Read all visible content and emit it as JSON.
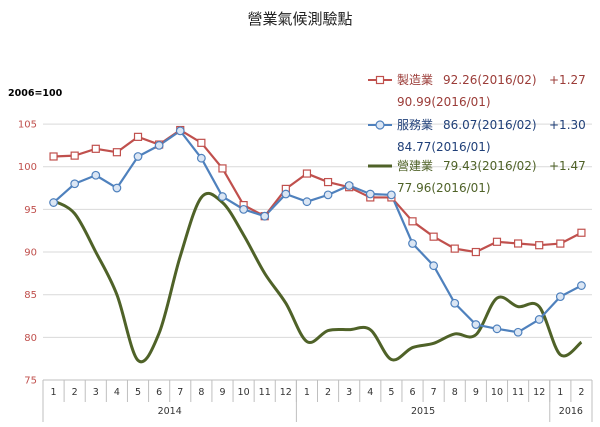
{
  "chart_data": {
    "type": "line",
    "title": "營業氣候測驗點",
    "base_note": "2006=100",
    "ylim": [
      75,
      107
    ],
    "yticks": [
      75,
      80,
      85,
      90,
      95,
      100,
      105
    ],
    "x_months": [
      "1",
      "2",
      "3",
      "4",
      "5",
      "6",
      "7",
      "8",
      "9",
      "10",
      "11",
      "12",
      "1",
      "2",
      "3",
      "4",
      "5",
      "6",
      "7",
      "8",
      "9",
      "10",
      "11",
      "12",
      "1",
      "2"
    ],
    "year_labels": [
      "2014",
      "2015",
      "2016"
    ],
    "series": [
      {
        "name": "製造業",
        "color": "#c0504d",
        "marker": "square",
        "smooth": false,
        "values": [
          101.2,
          101.3,
          102.1,
          101.7,
          103.5,
          102.6,
          104.3,
          102.8,
          99.8,
          95.5,
          94.2,
          97.4,
          99.2,
          98.2,
          97.6,
          96.4,
          96.4,
          93.6,
          91.8,
          90.4,
          90.0,
          91.2,
          91.0,
          90.8,
          90.99,
          92.26
        ],
        "legend_current": "92.26(2016/02)",
        "legend_change": "+1.27",
        "legend_previous": "90.99(2016/01)"
      },
      {
        "name": "服務業",
        "color": "#4f81bd",
        "marker": "circle",
        "smooth": false,
        "values": [
          95.8,
          98.0,
          99.0,
          97.5,
          101.2,
          102.5,
          104.2,
          101.0,
          96.5,
          95.0,
          94.2,
          96.8,
          95.9,
          96.7,
          97.8,
          96.8,
          96.7,
          91.0,
          88.4,
          84.0,
          81.5,
          81.0,
          80.6,
          82.1,
          84.77,
          86.07
        ],
        "legend_current": "86.07(2016/02)",
        "legend_change": "+1.30",
        "legend_previous": "84.77(2016/01)"
      },
      {
        "name": "營建業",
        "color": "#4f6228",
        "marker": "none",
        "smooth": true,
        "values": [
          96.0,
          94.5,
          90.0,
          85.0,
          77.3,
          80.5,
          89.5,
          96.4,
          95.8,
          92.0,
          87.5,
          84.0,
          79.5,
          80.8,
          80.9,
          80.9,
          77.4,
          78.8,
          79.3,
          80.4,
          80.3,
          84.6,
          83.6,
          83.6,
          77.96,
          79.43
        ],
        "legend_current": "79.43(2016/02)",
        "legend_change": "+1.47",
        "legend_previous": "77.96(2016/01)"
      }
    ]
  }
}
